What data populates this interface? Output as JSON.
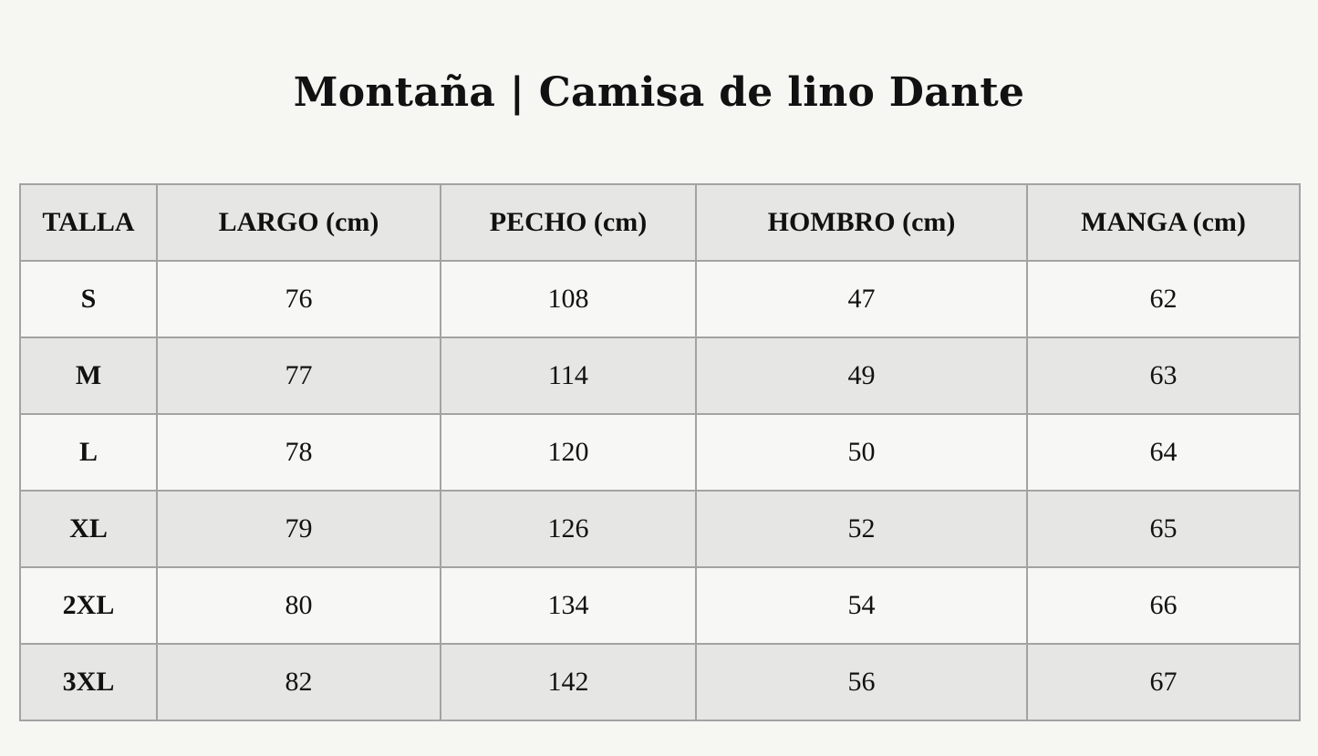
{
  "title": "Montaña | Camisa de lino Dante",
  "table": {
    "headers": [
      "TALLA",
      "LARGO (cm)",
      "PECHO (cm)",
      "HOMBRO (cm)",
      "MANGA (cm)"
    ],
    "rows": [
      [
        "S",
        "76",
        "108",
        "47",
        "62"
      ],
      [
        "M",
        "77",
        "114",
        "49",
        "63"
      ],
      [
        "L",
        "78",
        "120",
        "50",
        "64"
      ],
      [
        "XL",
        "79",
        "126",
        "52",
        "65"
      ],
      [
        "2XL",
        "80",
        "134",
        "54",
        "66"
      ],
      [
        "3XL",
        "82",
        "142",
        "56",
        "67"
      ]
    ]
  },
  "colors": {
    "background": "#f6f6f3",
    "header_row": "#e6e6e4",
    "stripe_row": "#e6e6e4",
    "border": "#a3a3a3",
    "text": "#111111"
  }
}
